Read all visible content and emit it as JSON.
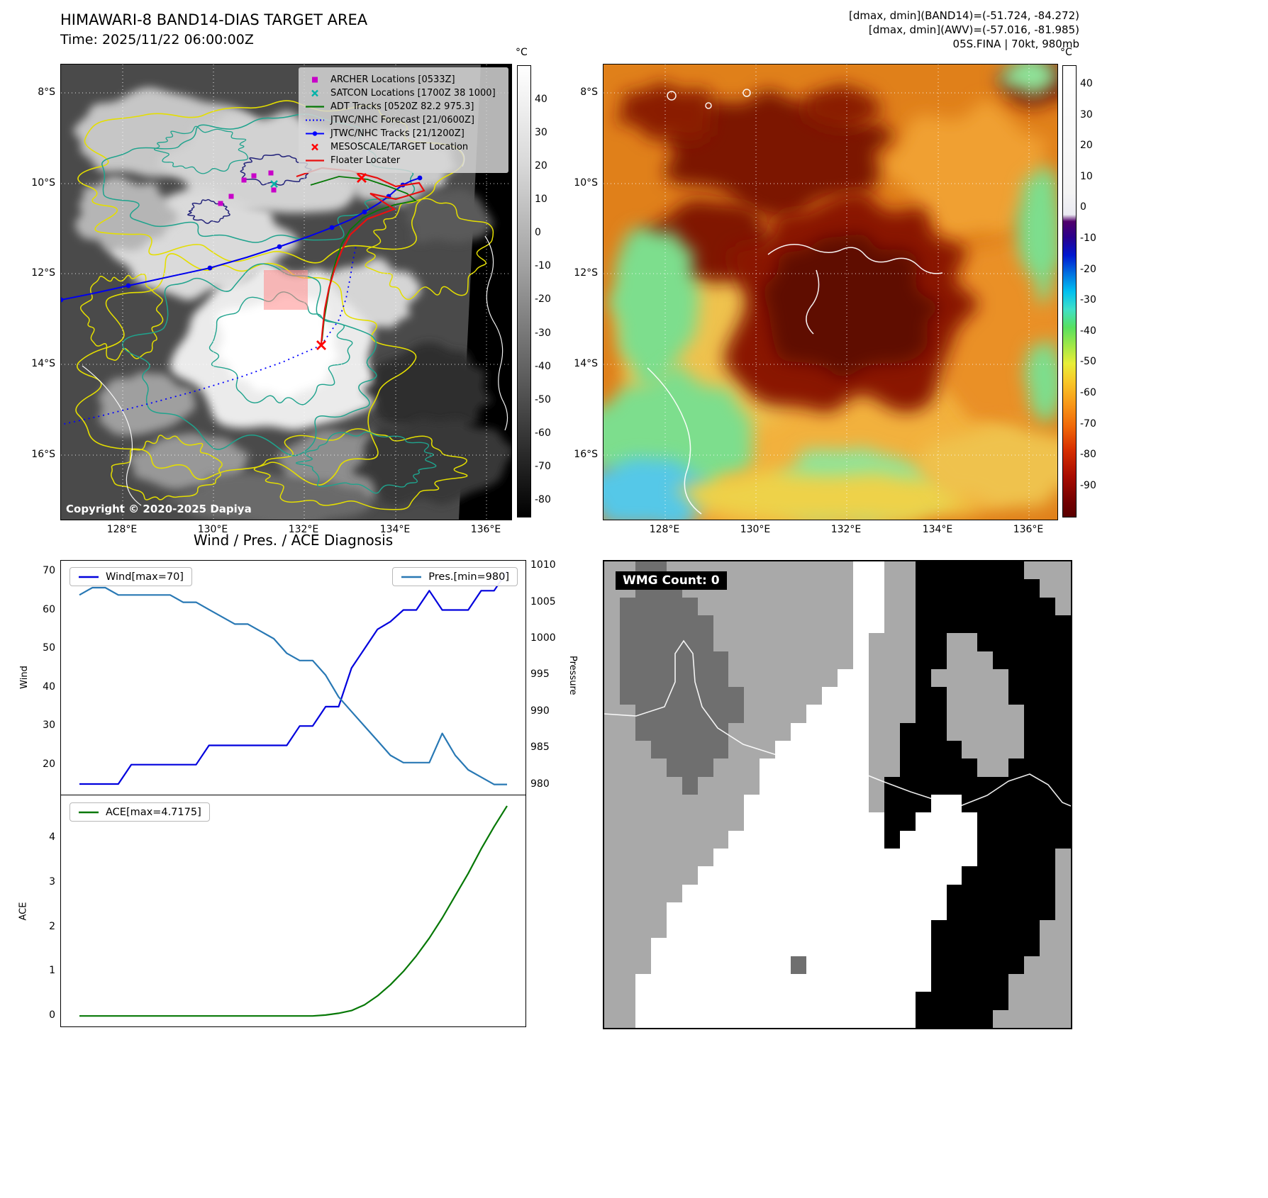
{
  "panel_band14": {
    "title_line1": "HIMAWARI-8 BAND14-DIAS TARGET AREA",
    "title_line2": "Time: 2025/11/22 06:00:00Z",
    "copyright": "Copyright © 2020-2025 Dapiya",
    "colorbar": {
      "unit": "°C",
      "ticks": [
        40,
        30,
        20,
        10,
        0,
        -10,
        -20,
        -30,
        -40,
        -50,
        -60,
        -70,
        -80
      ]
    },
    "legend": [
      {
        "label": "ARCHER Locations [0533Z]",
        "marker": "square",
        "color": "#c800c8"
      },
      {
        "label": "SATCON Locations [1700Z 38 1000]",
        "marker": "x",
        "color": "#00b2a8"
      },
      {
        "label": "ADT Tracks [0520Z 82.2 975.3]",
        "marker": "line",
        "color": "#067806"
      },
      {
        "label": "JTWC/NHC Forecast [21/0600Z]",
        "marker": "dotted",
        "color": "#0000ff"
      },
      {
        "label": "JTWC/NHC Tracks [21/1200Z]",
        "marker": "line-dot",
        "color": "#0000ff"
      },
      {
        "label": "MESOSCALE/TARGET Location",
        "marker": "x",
        "color": "#ff0000"
      },
      {
        "label": "Floater Locater",
        "marker": "line",
        "color": "#e81010"
      }
    ]
  },
  "panel_awv": {
    "header_line1": "[dmax, dmin](BAND14)=(-51.724, -84.272)",
    "header_line2": "[dmax, dmin](AWV)=(-57.016, -81.985)",
    "header_line3": "05S.FINA | 70kt, 980mb",
    "colorbar": {
      "unit": "°C",
      "ticks": [
        40,
        30,
        20,
        10,
        0,
        -10,
        -20,
        -30,
        -40,
        -50,
        -60,
        -70,
        -80,
        -90
      ]
    }
  },
  "geo_axes": {
    "x_ticks": [
      "128°E",
      "130°E",
      "132°E",
      "134°E",
      "136°E"
    ],
    "y_ticks": [
      "8°S",
      "10°S",
      "12°S",
      "14°S",
      "16°S"
    ]
  },
  "diagnosis": {
    "title": "Wind / Pres. / ACE Diagnosis",
    "wind_legend": "Wind[max=70]",
    "pres_legend": "Pres.[min=980]",
    "ace_legend": "ACE[max=4.7175]",
    "wind_axis_label": "Wind",
    "pressure_axis_label": "Pressure",
    "ace_axis_label": "ACE"
  },
  "chart_data": [
    {
      "type": "line",
      "title": "Wind / Pres. / ACE Diagnosis",
      "x_tick_labels_visible": false,
      "series": [
        {
          "name": "Wind",
          "axis": "left",
          "color": "#0000dd",
          "ylim": [
            12.25,
            72.75
          ],
          "ticks": [
            20,
            30,
            40,
            50,
            60,
            70
          ],
          "values": [
            15,
            15,
            15,
            15,
            20,
            20,
            20,
            20,
            20,
            20,
            25,
            25,
            25,
            25,
            25,
            25,
            25,
            30,
            30,
            35,
            35,
            45,
            50,
            55,
            57,
            60,
            60,
            65,
            60,
            60,
            60,
            65,
            65,
            70
          ]
        },
        {
          "name": "Pressure",
          "axis": "right",
          "color": "#2878b4",
          "ylim": [
            978.6,
            1010.7
          ],
          "ticks": [
            980,
            985,
            990,
            995,
            1000,
            1005,
            1010
          ],
          "values": [
            1006,
            1007,
            1007,
            1006,
            1006,
            1006,
            1006,
            1006,
            1005,
            1005,
            1004,
            1003,
            1002,
            1002,
            1001,
            1000,
            998,
            997,
            997,
            995,
            992,
            990,
            988,
            986,
            984,
            983,
            983,
            983,
            987,
            984,
            982,
            981,
            980,
            980
          ]
        }
      ]
    },
    {
      "type": "line",
      "series": [
        {
          "name": "ACE",
          "axis": "left",
          "color": "#067806",
          "ylim": [
            -0.236,
            4.954
          ],
          "ticks": [
            0,
            1,
            2,
            3,
            4
          ],
          "values": [
            0,
            0,
            0,
            0,
            0,
            0,
            0,
            0,
            0,
            0,
            0,
            0,
            0,
            0,
            0,
            0,
            0,
            0,
            0,
            0.02,
            0.06,
            0.12,
            0.25,
            0.45,
            0.7,
            1.0,
            1.35,
            1.75,
            2.2,
            2.7,
            3.2,
            3.75,
            4.25,
            4.7175
          ]
        }
      ]
    }
  ],
  "wmg": {
    "label": "WMG Count: 0",
    "colors": {
      "G": "#a9a9a9",
      "D": "#6f6f6f",
      "W": "#ffffff",
      "B": "#000000"
    },
    "grid_rows": [
      "GGDDGGGGGGGGGGGGWWGGBBBBBBBGGG",
      "GGDDDGGGGGGGGGGGWWGGBBBBBBBBGG",
      "GDDDDDGGGGGGGGGGWWGGBBBBBBBBBG",
      "GDDDDDDGGGGGGGGGWWGGBBBBBBBBBB",
      "GDDDDDDGGGGGGGGGWGGGBBGGBBBBBB",
      "GDDDDDDDGGGGGGGGWGGGBBGGGBBBBB",
      "GDDDDDDDGGGGGGGWWGGGBGGGGGBBBB",
      "GDDDDDDDDGGGGGWWWGGGBBGGGGBBBB",
      "GGDDDDDDDGGGGWWWWGGGBBGGGGGBBB",
      "GGDDDDDDGGGGWWWWWGGBBBGGGGGBBB",
      "GGGDDDDDGGGWWWWWWGGBBBBGGGGBBB",
      "GGGGDDDGGGWWWWWWWGGBBBBBGGBBBB",
      "GGGGGDGGGGWWWWWWWGBBBBBBBBBBBB",
      "GGGGGGGGGWWWWWWWWGBBBWWBBBBBBB",
      "GGGGGGGGGWWWWWWWWWBBWWWWBBBBBB",
      "GGGGGGGGWWWWWWWWWWBWWWWWBBBBBB",
      "GGGGGGGWWWWWWWWWWWWWWWWWBBBBBG",
      "GGGGGGWWWWWWWWWWWWWWWWWBBBBBBG",
      "GGGGGWWWWWWWWWWWWWWWWWBBBBBBBG",
      "GGGGWWWWWWWWWWWWWWWWWWBBBBBBBG",
      "GGGGWWWWWWWWWWWWWWWWWBBBBBBBGG",
      "GGGWWWWWWWWWWWWWWWWWWBBBBBBBGG",
      "GGGWWWWWWWWWDWWWWWWWWBBBBBBGGG",
      "GGWWWWWWWWWWWWWWWWWWWBBBBBGGGG",
      "GGWWWWWWWWWWWWWWWWWWBBBBBBGGGG",
      "GGWWWWWWWWWWWWWWWWWWBBBBBGGGGG"
    ]
  }
}
